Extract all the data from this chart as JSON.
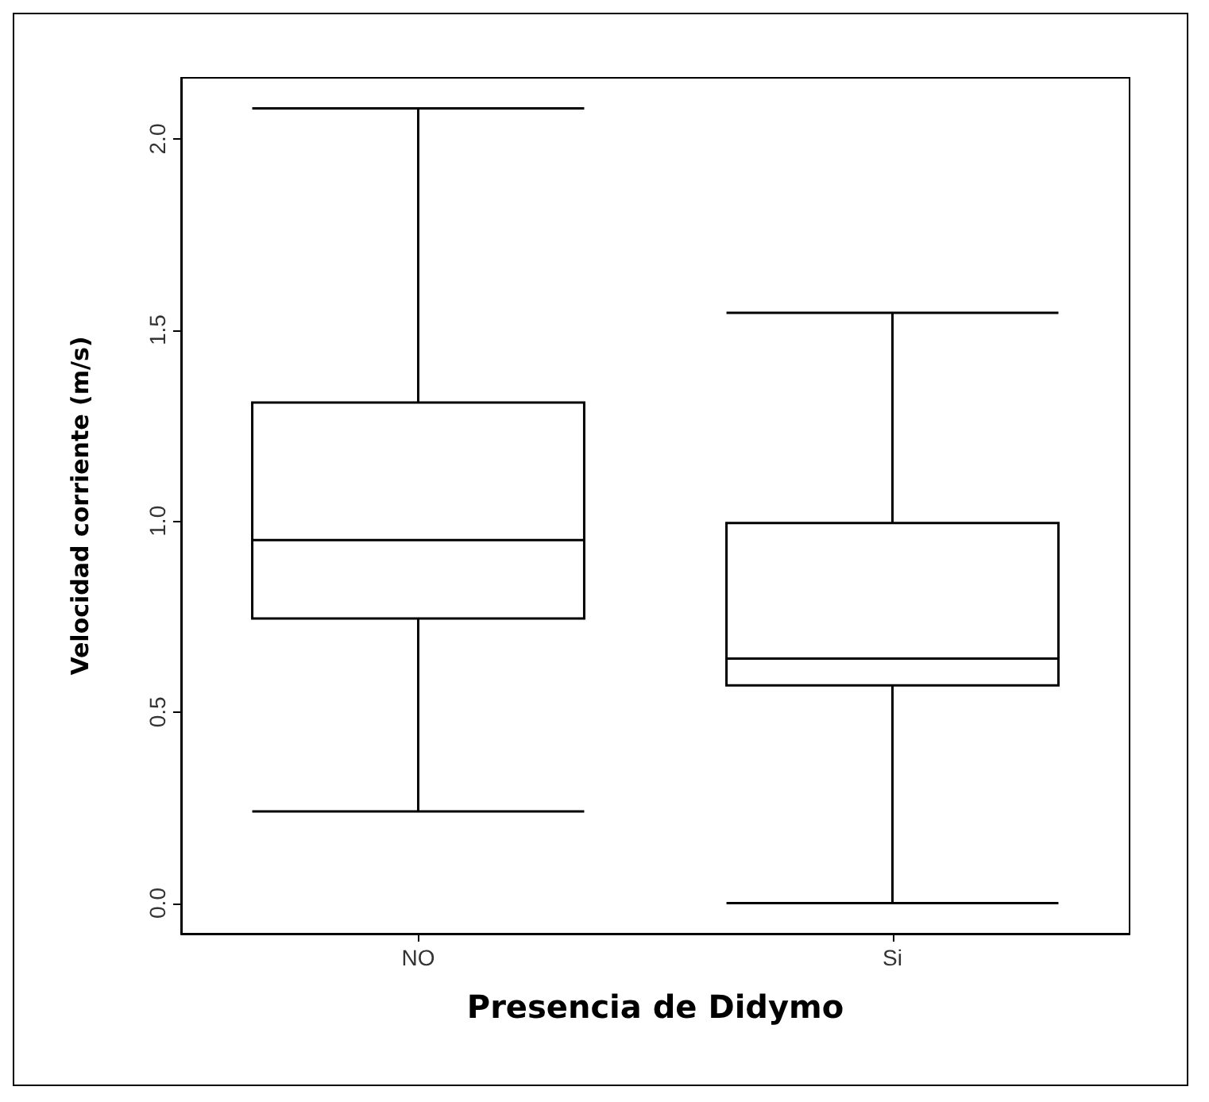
{
  "chart_data": {
    "type": "box",
    "xlabel": "Presencia de Didymo",
    "ylabel": "Velocidad corriente (m/s)",
    "categories": [
      "NO",
      "Si"
    ],
    "boxes": [
      {
        "low": 0.24,
        "q1": 0.745,
        "median": 0.95,
        "q3": 1.31,
        "high": 2.08
      },
      {
        "low": 0.0,
        "q1": 0.57,
        "median": 0.64,
        "q3": 0.995,
        "high": 1.545
      }
    ],
    "ylim": [
      -0.08,
      2.16
    ],
    "yticks": [
      {
        "value": 0,
        "label": "0.0"
      },
      0.5,
      {
        "value": 1,
        "label": "1.0"
      },
      1.5,
      {
        "value": 2,
        "label": "2.0"
      }
    ],
    "color": "#000000",
    "grid": false
  }
}
